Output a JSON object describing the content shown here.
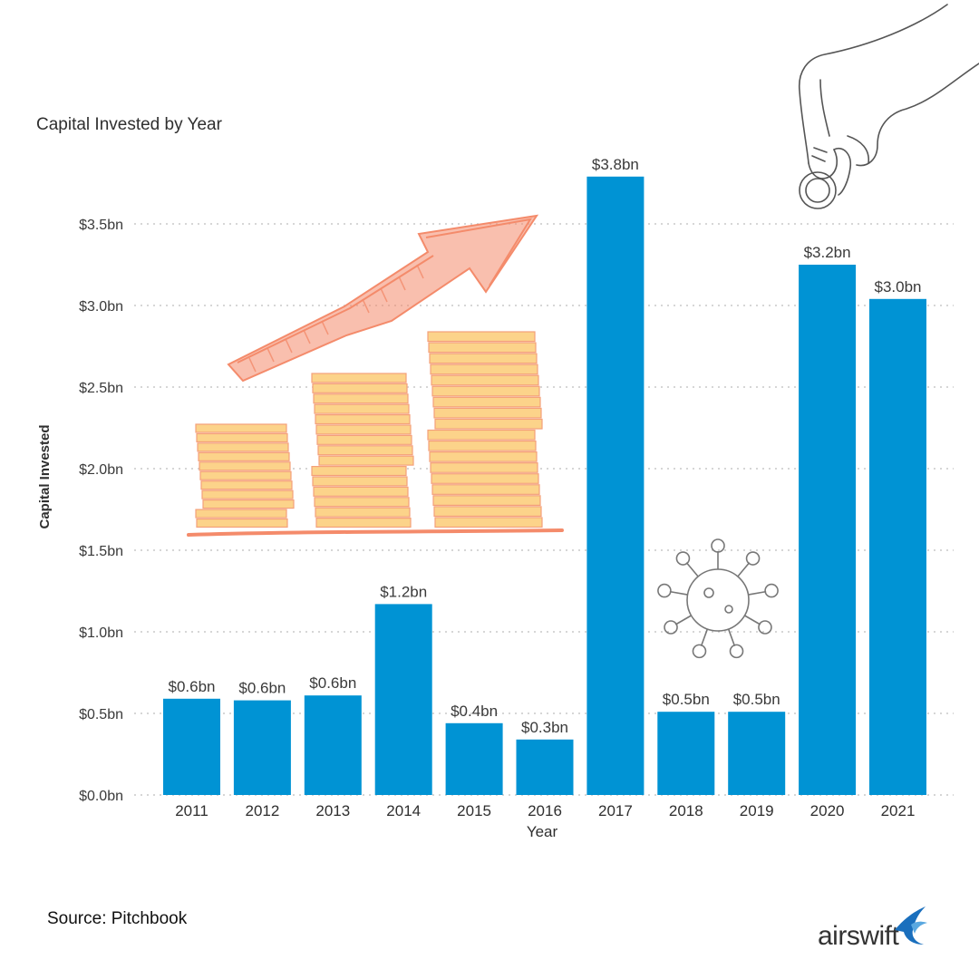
{
  "chart_data": {
    "type": "bar",
    "title": "Capital Invested by Year",
    "xlabel": "Year",
    "ylabel": "Capital Invested",
    "categories": [
      "2011",
      "2012",
      "2013",
      "2014",
      "2015",
      "2016",
      "2017",
      "2018",
      "2019",
      "2020",
      "2021"
    ],
    "values": [
      0.59,
      0.58,
      0.61,
      1.17,
      0.44,
      0.34,
      3.79,
      0.51,
      0.51,
      3.25,
      3.04
    ],
    "value_labels": [
      "$0.6bn",
      "$0.6bn",
      "$0.6bn",
      "$1.2bn",
      "$0.4bn",
      "$0.3bn",
      "$3.8bn",
      "$0.5bn",
      "$0.5bn",
      "$3.2bn",
      "$3.0bn"
    ],
    "yticks": [
      0,
      0.5,
      1.0,
      1.5,
      2.0,
      2.5,
      3.0,
      3.5
    ],
    "ytick_labels": [
      "$0.0bn",
      "$0.5bn",
      "$1.0bn",
      "$1.5bn",
      "$2.0bn",
      "$2.5bn",
      "$3.0bn",
      "$3.5bn"
    ],
    "ylim": [
      0,
      3.9
    ],
    "grid": "horizontal-dotted",
    "bar_color": "#0093d4"
  },
  "footer": {
    "source": "Source: Pitchbook",
    "brand": "airswift"
  },
  "colors": {
    "arrow": "#f48b6b",
    "coin_fill": "#fcd38a",
    "coin_stroke": "#f4a07a",
    "sketch": "#555555",
    "brand_swift": "#1a6fbd"
  },
  "icons": [
    "growth-arrow-sketch",
    "coin-stacks-sketch",
    "hand-with-coin-sketch",
    "virus-sketch",
    "swift-bird-icon"
  ]
}
